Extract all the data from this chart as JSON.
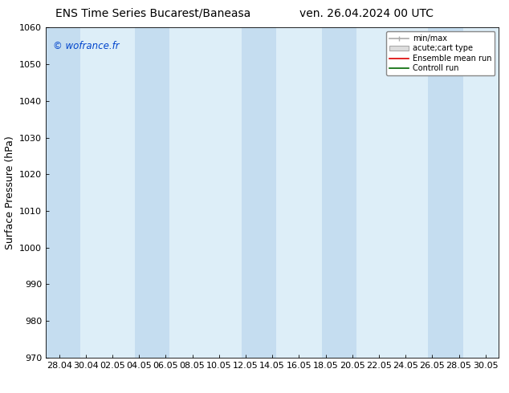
{
  "title_left": "ENS Time Series Bucarest/Baneasa",
  "title_right": "ven. 26.04.2024 00 UTC",
  "ylabel": "Surface Pressure (hPa)",
  "ylim": [
    970,
    1060
  ],
  "yticks": [
    970,
    980,
    990,
    1000,
    1010,
    1020,
    1030,
    1040,
    1050,
    1060
  ],
  "xtick_labels": [
    "28.04",
    "30.04",
    "02.05",
    "04.05",
    "06.05",
    "08.05",
    "10.05",
    "12.05",
    "14.05",
    "16.05",
    "18.05",
    "20.05",
    "22.05",
    "24.05",
    "26.05",
    "28.05",
    "30.05"
  ],
  "watermark": "© wofrance.fr",
  "bg_color": "#ffffff",
  "plot_bg_color": "#ddeef8",
  "band_color": "#c5ddf0",
  "band_edge_color": "#b0ccdf",
  "legend_labels": [
    "min/max",
    "acute;cart type",
    "Ensemble mean run",
    "Controll run"
  ],
  "title_fontsize": 10,
  "tick_fontsize": 8,
  "ylabel_fontsize": 9,
  "band_x_starts": [
    0.0,
    3.0,
    5.0,
    7.0,
    9.0,
    11.0,
    13.0,
    15.0
  ],
  "band_widths": [
    1.0,
    2.0,
    2.0,
    2.0,
    2.0,
    2.0,
    2.0,
    2.0
  ]
}
